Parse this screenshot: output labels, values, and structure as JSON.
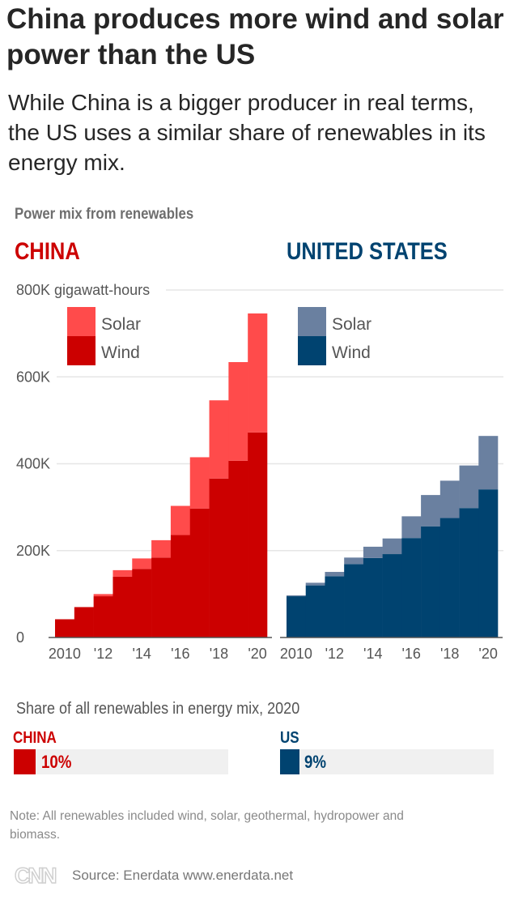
{
  "header": {
    "title": "China produces more wind and solar power than the US",
    "subtitle": "While China is a bigger producer in real terms, the US uses a similar share of renewables in its energy mix."
  },
  "colors": {
    "china_wind": "#cc0000",
    "china_solar": "#ff4b4b",
    "us_wind": "#004370",
    "us_solar": "#6a80a0",
    "gridline": "#e6e6e6"
  },
  "chart_data": [
    {
      "type": "bar",
      "stacked": true,
      "title": "CHINA",
      "section_label": "Power mix from renewables",
      "ylabel": "800K gigawatt-hours",
      "ylim": [
        0,
        800
      ],
      "y_unit": "thousand gigawatt-hours",
      "yticks": [
        "0",
        "200K",
        "400K",
        "600K",
        "800K gigawatt-hours"
      ],
      "grid": true,
      "legend": "top-left",
      "categories": [
        "2010",
        "2011",
        "2012",
        "2013",
        "2014",
        "2015",
        "2016",
        "2017",
        "2018",
        "2019",
        "2020"
      ],
      "tick_labels": [
        "2010",
        "'12",
        "'14",
        "'16",
        "'18",
        "'20"
      ],
      "series": [
        {
          "name": "Wind",
          "values": [
            42,
            70,
            95,
            140,
            158,
            184,
            236,
            297,
            366,
            407,
            472
          ]
        },
        {
          "name": "Solar",
          "values": [
            0,
            0,
            5,
            15,
            24,
            40,
            67,
            118,
            180,
            227,
            274
          ]
        }
      ]
    },
    {
      "type": "bar",
      "stacked": true,
      "title": "UNITED STATES",
      "ylim": [
        0,
        800
      ],
      "grid": true,
      "legend": "top-left",
      "categories": [
        "2010",
        "2011",
        "2012",
        "2013",
        "2014",
        "2015",
        "2016",
        "2017",
        "2018",
        "2019",
        "2020"
      ],
      "tick_labels": [
        "2010",
        "'12",
        "'14",
        "'16",
        "'18",
        "'20"
      ],
      "series": [
        {
          "name": "Wind",
          "values": [
            95,
            120,
            141,
            169,
            183,
            192,
            229,
            256,
            275,
            298,
            341
          ]
        },
        {
          "name": "Solar",
          "values": [
            2,
            6,
            10,
            15,
            26,
            36,
            50,
            72,
            86,
            98,
            123
          ]
        }
      ]
    }
  ],
  "share": {
    "title": "Share of all renewables in energy mix, 2020",
    "china": {
      "label": "CHINA",
      "value_text": "10%",
      "percent": 10
    },
    "us": {
      "label": "US",
      "value_text": "9%",
      "percent": 9
    }
  },
  "footer": {
    "note": "Note: All renewables included wind, solar, geothermal, hydropower and biomass.",
    "logo": "CNN",
    "source": "Source: Enerdata www.enerdata.net"
  }
}
